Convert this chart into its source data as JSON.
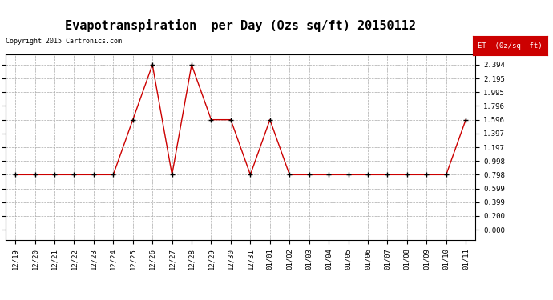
{
  "title": "Evapotranspiration  per Day (Ozs sq/ft) 20150112",
  "copyright": "Copyright 2015 Cartronics.com",
  "legend_label": "ET  (0z/sq  ft)",
  "x_labels": [
    "12/19",
    "12/20",
    "12/21",
    "12/22",
    "12/23",
    "12/24",
    "12/25",
    "12/26",
    "12/27",
    "12/28",
    "12/29",
    "12/30",
    "12/31",
    "01/01",
    "01/02",
    "01/03",
    "01/04",
    "01/05",
    "01/06",
    "01/07",
    "01/08",
    "01/09",
    "01/10",
    "01/11"
  ],
  "y_values": [
    0.798,
    0.798,
    0.798,
    0.798,
    0.798,
    0.798,
    1.596,
    2.394,
    0.798,
    2.394,
    1.596,
    1.596,
    0.798,
    1.596,
    0.798,
    0.798,
    0.798,
    0.798,
    0.798,
    0.798,
    0.798,
    0.798,
    0.798,
    1.596
  ],
  "y_ticks": [
    0.0,
    0.2,
    0.399,
    0.599,
    0.798,
    0.998,
    1.197,
    1.397,
    1.596,
    1.796,
    1.995,
    2.195,
    2.394
  ],
  "y_tick_labels": [
    "0.000",
    "0.200",
    "0.399",
    "0.599",
    "0.798",
    "0.998",
    "1.197",
    "1.397",
    "1.596",
    "1.796",
    "1.995",
    "2.195",
    "2.394"
  ],
  "line_color": "#cc0000",
  "marker_color": "#000000",
  "bg_color": "#ffffff",
  "grid_color": "#aaaaaa",
  "title_fontsize": 11,
  "legend_bg": "#cc0000",
  "legend_fg": "#ffffff",
  "copyright_fontsize": 6,
  "tick_fontsize": 6.5,
  "ytick_fontsize": 6.5
}
